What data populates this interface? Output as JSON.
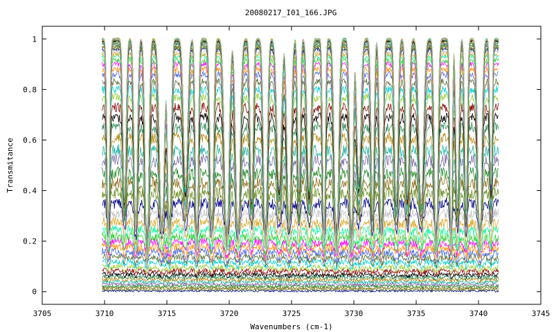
{
  "chart_data": {
    "type": "line",
    "title": "20080217_I01_166.JPG",
    "xlabel": "Wavenumbers (cm-1)",
    "ylabel": "Transmitance",
    "xlim": [
      3705,
      3745
    ],
    "ylim": [
      -0.05,
      1.05
    ],
    "x_ticks": [
      "3705",
      "3710",
      "3715",
      "3720",
      "3725",
      "3730",
      "3735",
      "3740",
      "3745"
    ],
    "y_ticks": [
      "0",
      "0.2",
      "0.4",
      "0.6",
      "0.8",
      "1"
    ],
    "x_data_range": [
      3709.8,
      3741.6
    ],
    "grid": false,
    "legend": "none",
    "series_count": 60,
    "series_levels": [
      0.003,
      0.009,
      0.015,
      0.022,
      0.03,
      0.04,
      0.05,
      0.06,
      0.07,
      0.085,
      0.1,
      0.12,
      0.14,
      0.16,
      0.18,
      0.2,
      0.22,
      0.25,
      0.28,
      0.31,
      0.35,
      0.39,
      0.43,
      0.47,
      0.52,
      0.56,
      0.61,
      0.65,
      0.69,
      0.73,
      0.77,
      0.8,
      0.83,
      0.86,
      0.88,
      0.9,
      0.915,
      0.93,
      0.94,
      0.95,
      0.96,
      0.965,
      0.97,
      0.975,
      0.98,
      0.984,
      0.987,
      0.99,
      0.992,
      0.994,
      0.996,
      0.997,
      0.998,
      0.999,
      1.0,
      1.0,
      1.0,
      1.0,
      1.0,
      1.0
    ],
    "absorption_lines": [
      3710.3,
      3711.6,
      3712.5,
      3713.4,
      3714.6,
      3715.2,
      3716.5,
      3717.4,
      3718.6,
      3719.8,
      3720.7,
      3721.8,
      3722.9,
      3724.0,
      3724.8,
      3725.6,
      3726.4,
      3727.6,
      3728.6,
      3729.8,
      3730.4,
      3731.5,
      3732.2,
      3733.4,
      3734.3,
      3735.4,
      3736.6,
      3737.8,
      3738.3,
      3739.0,
      3740.1,
      3741.0
    ],
    "colors": [
      "#00008b",
      "#6b8e23",
      "#8b6914",
      "#228b22",
      "#7b68a0",
      "#20b2aa",
      "#b8860b",
      "#2e8b57",
      "#000000",
      "#8b0000",
      "#9acd32",
      "#00ced1",
      "#556b2f",
      "#4169e1",
      "#ff8c00",
      "#ff00ff",
      "#32cd32",
      "#00fa9a",
      "#daa520",
      "#c0c0c0"
    ]
  }
}
